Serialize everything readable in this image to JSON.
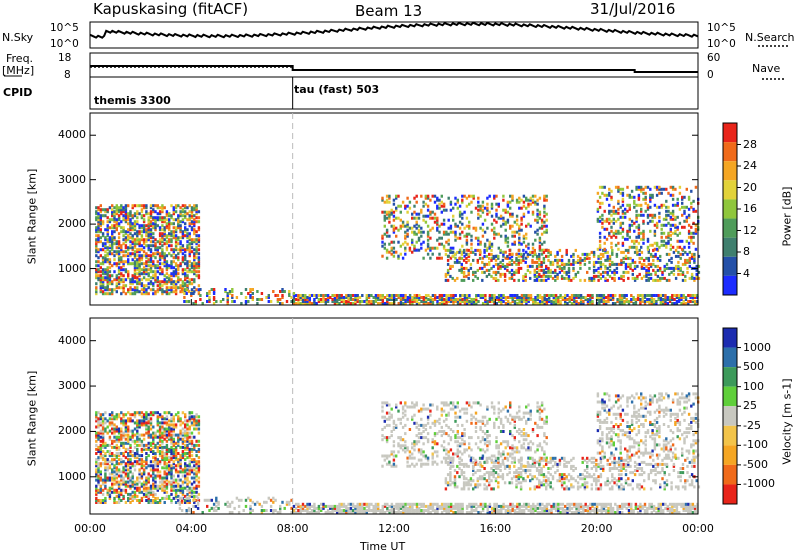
{
  "header": {
    "station": "Kapuskasing (fitACF)",
    "beam": "Beam 13",
    "date": "31/Jul/2016"
  },
  "side_labels": {
    "nsky": "N.Sky",
    "nsky_hi": "10^5",
    "nsky_lo": "10^0",
    "nsearch": "N.Search",
    "nsearch_hi": "10^5",
    "nsearch_lo": "10^0",
    "freq": "Freq.",
    "freq_unit": "[MHz]",
    "freq_hi": "18",
    "freq_lo": "8",
    "nave": "Nave",
    "nave_hi": "60",
    "nave_lo": "0",
    "cpid": "CPID"
  },
  "cpid_segments": [
    {
      "start_hour": 0,
      "label": "themis 3300"
    },
    {
      "start_hour": 8,
      "label": "tau (fast) 503"
    }
  ],
  "colors": {
    "power": [
      "#1c2cff",
      "#2450a8",
      "#3f7f6e",
      "#4f9c5a",
      "#8fc63c",
      "#e2d23a",
      "#f5a623",
      "#f06a1a",
      "#e8241a"
    ],
    "velocity": [
      "#e8241a",
      "#f06a1a",
      "#f5a623",
      "#f3c44a",
      "#c8c8c0",
      "#5fcf3a",
      "#3c9a5a",
      "#2c6faa",
      "#1c2cb0"
    ]
  },
  "chart_data": [
    {
      "type": "heatmap",
      "name": "power",
      "ylabel": "Slant Range [km]",
      "yticks": [
        1000,
        2000,
        3000,
        4000
      ],
      "ylim": [
        180,
        4500
      ],
      "xlim": [
        0,
        24
      ],
      "colorbar_label": "Power [dB]",
      "colorbar_ticks": [
        "4",
        "8",
        "12",
        "16",
        "20",
        "24",
        "28"
      ],
      "colorbar_range": [
        0,
        30
      ]
    },
    {
      "type": "heatmap",
      "name": "velocity",
      "ylabel": "Slant Range [km]",
      "yticks": [
        1000,
        2000,
        3000,
        4000
      ],
      "ylim": [
        180,
        4500
      ],
      "xlim": [
        0,
        24
      ],
      "xlabel": "Time UT",
      "xticks": [
        "00:00",
        "04:00",
        "08:00",
        "12:00",
        "16:00",
        "20:00",
        "00:00"
      ],
      "colorbar_label": "Velocity [m s-1]",
      "colorbar_ticks": [
        "1000",
        "500",
        "100",
        "25",
        "-25",
        "-100",
        "-500",
        "-1000"
      ]
    }
  ]
}
